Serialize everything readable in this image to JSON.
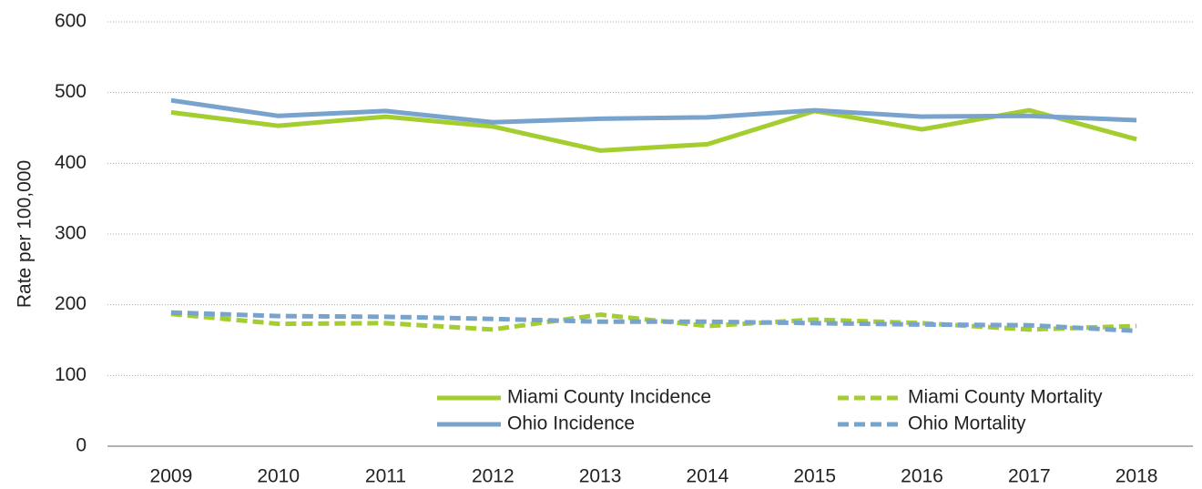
{
  "chart_data": {
    "type": "line",
    "y_label": "Rate per 100,000",
    "categories": [
      "2009",
      "2010",
      "2011",
      "2012",
      "2013",
      "2014",
      "2015",
      "2016",
      "2017",
      "2018"
    ],
    "series": [
      {
        "name": "Miami County Incidence",
        "color": "#a4cd2f",
        "dashed": false,
        "values": [
          472,
          453,
          466,
          452,
          418,
          427,
          474,
          448,
          475,
          434
        ]
      },
      {
        "name": "Miami County Mortality",
        "color": "#a4cd2f",
        "dashed": true,
        "values": [
          187,
          173,
          174,
          165,
          186,
          170,
          179,
          174,
          165,
          170
        ]
      },
      {
        "name": "Ohio Incidence",
        "color": "#78a3cd",
        "dashed": false,
        "values": [
          489,
          467,
          474,
          458,
          463,
          465,
          475,
          466,
          467,
          461
        ]
      },
      {
        "name": "Ohio Mortality",
        "color": "#78a3cd",
        "dashed": true,
        "values": [
          189,
          184,
          183,
          180,
          176,
          176,
          174,
          172,
          171,
          163
        ]
      }
    ],
    "ylim": [
      0,
      600
    ],
    "yticks": [
      0,
      100,
      200,
      300,
      400,
      500,
      600
    ],
    "grid": true,
    "legend": "lower right"
  }
}
